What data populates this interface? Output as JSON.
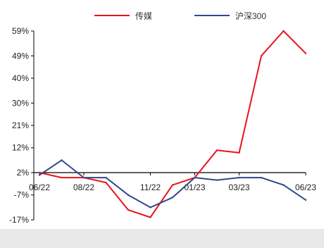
{
  "chart_data": {
    "type": "line",
    "legend_position": "top",
    "y_ticks": [
      "59%",
      "49%",
      "40%",
      "30%",
      "21%",
      "12%",
      "2%",
      "-7%",
      "-17%"
    ],
    "y_tick_values": [
      59,
      49,
      40,
      30,
      21,
      12,
      2,
      -7,
      -17
    ],
    "ylim": [
      -17,
      59
    ],
    "x_ticks": [
      "06/22",
      "08/22",
      "11/22",
      "01/23",
      "03/23",
      "06/23"
    ],
    "x": [
      "2022-06",
      "2022-07",
      "2022-08",
      "2022-09",
      "2022-10",
      "2022-11",
      "2022-12",
      "2023-01",
      "2023-02",
      "2023-03",
      "2023-04",
      "2023-05",
      "2023-06"
    ],
    "series": [
      {
        "name": "传媒",
        "color": "#e8141b",
        "values": [
          2,
          0,
          0,
          -2,
          -13,
          -16,
          -3,
          0,
          11,
          10,
          49,
          59,
          50
        ]
      },
      {
        "name": "沪深300",
        "color": "#2e4a8a",
        "values": [
          1,
          7,
          0,
          0,
          -7,
          -12,
          -8,
          0,
          -1,
          0,
          0,
          -3,
          -9
        ]
      }
    ]
  }
}
